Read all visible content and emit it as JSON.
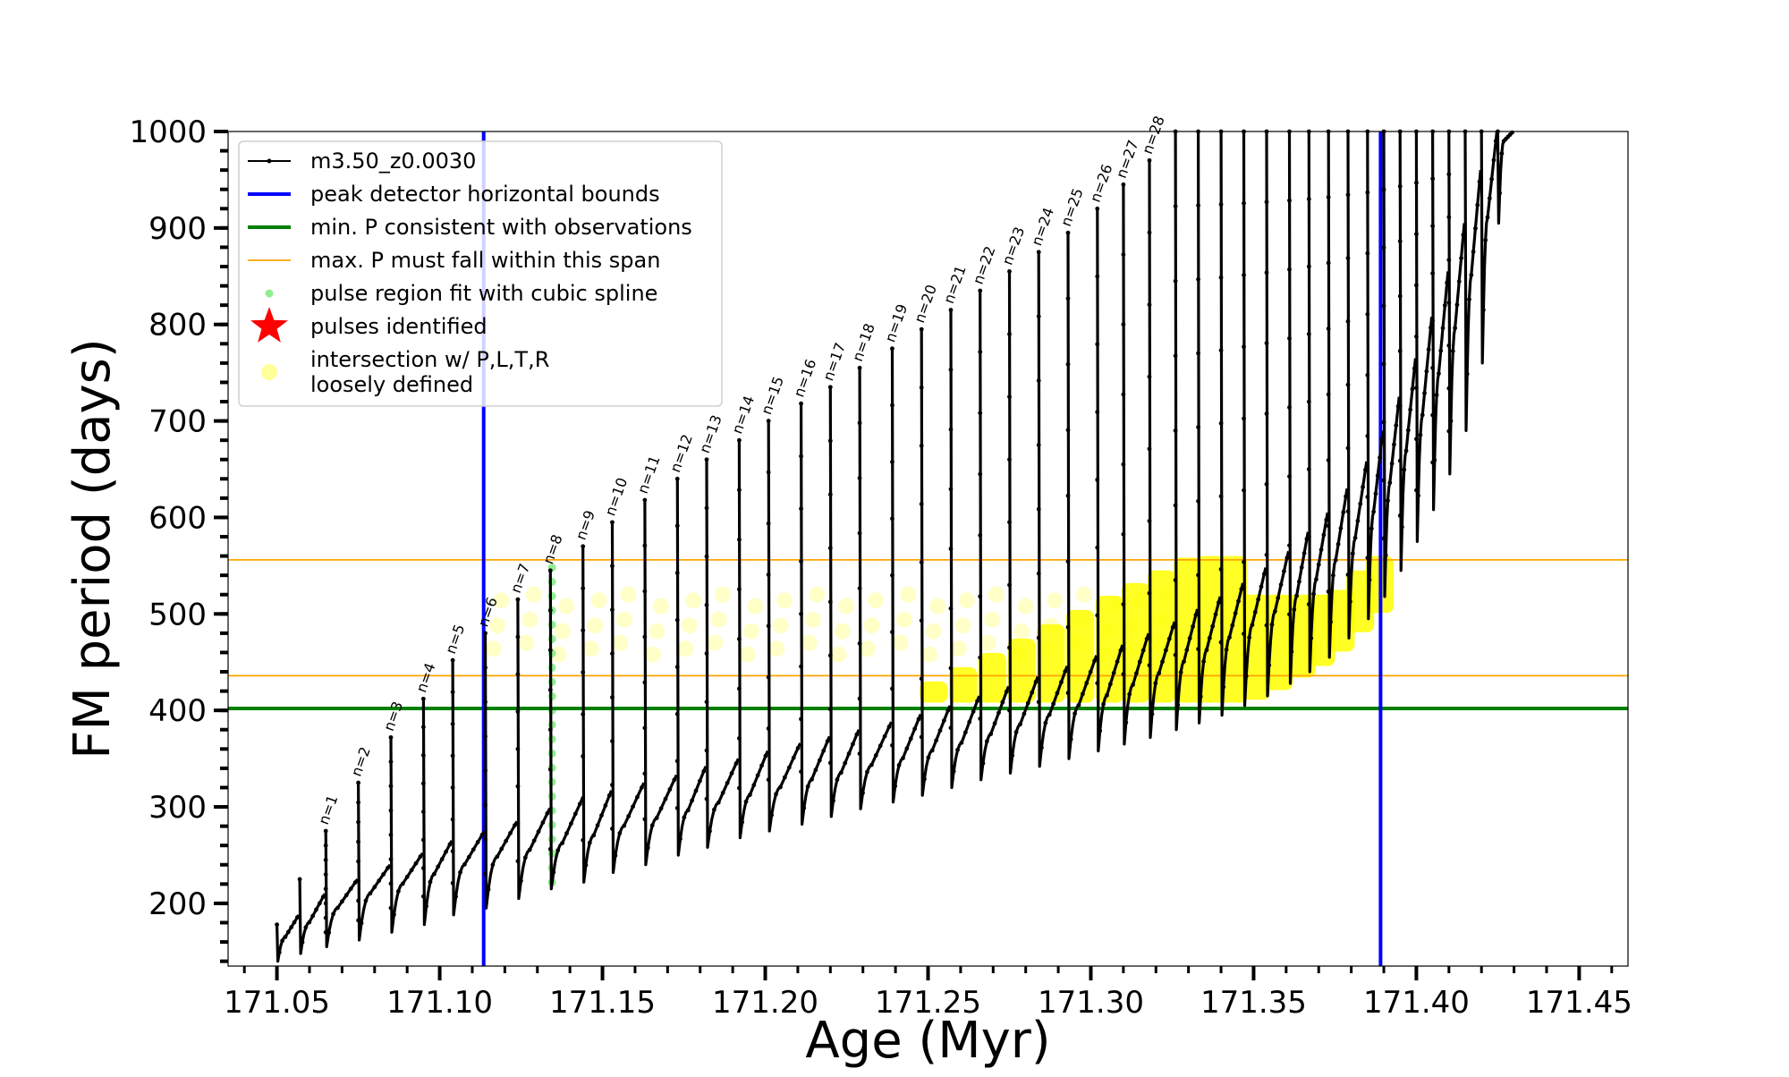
{
  "chart_data": {
    "type": "line",
    "xlabel": "Age (Myr)",
    "ylabel": "FM period (days)",
    "xlim": [
      171.035,
      171.465
    ],
    "ylim": [
      135,
      1000
    ],
    "xticks": [
      171.05,
      171.1,
      171.15,
      171.2,
      171.25,
      171.3,
      171.35,
      171.4,
      171.45
    ],
    "xtick_labels": [
      "171.05",
      "171.10",
      "171.15",
      "171.20",
      "171.25",
      "171.30",
      "171.35",
      "171.40",
      "171.45"
    ],
    "yticks": [
      200,
      300,
      400,
      500,
      600,
      700,
      800,
      900,
      1000
    ],
    "ytick_labels": [
      "200",
      "300",
      "400",
      "500",
      "600",
      "700",
      "800",
      "900",
      "1000"
    ],
    "grid": false,
    "legend_position": "top-left",
    "legend": [
      {
        "label": "m3.50_z0.0030",
        "kind": "line-marker",
        "color": "#000000"
      },
      {
        "label": "peak detector horizontal bounds",
        "kind": "line",
        "color": "#0000ff"
      },
      {
        "label": "min. P consistent with observations",
        "kind": "line",
        "color": "#008000"
      },
      {
        "label": "max. P must fall within this span",
        "kind": "thin-line",
        "color": "#ffa500"
      },
      {
        "label": "pulse region fit with cubic spline",
        "kind": "dot",
        "color": "#90ee90"
      },
      {
        "label": "pulses identified",
        "kind": "star",
        "color": "#ff0000"
      },
      {
        "label": "intersection w/ P,L,T,R\nloosely defined",
        "kind": "big-dot",
        "color": "#ffff99"
      }
    ],
    "series": [
      {
        "name": "m3.50_z0.0030",
        "color": "#000000",
        "pulses": [
          {
            "n": "",
            "x": 171.05,
            "bottom": 140,
            "plateau_start": 165,
            "plateau_end": 188,
            "peak": 178
          },
          {
            "n": "",
            "x": 171.057,
            "bottom": 148,
            "plateau_start": 180,
            "plateau_end": 210,
            "peak": 225
          },
          {
            "n": "n=1",
            "x": 171.065,
            "bottom": 155,
            "plateau_start": 195,
            "plateau_end": 225,
            "peak": 275
          },
          {
            "n": "n=2",
            "x": 171.075,
            "bottom": 162,
            "plateau_start": 210,
            "plateau_end": 240,
            "peak": 325
          },
          {
            "n": "n=3",
            "x": 171.085,
            "bottom": 170,
            "plateau_start": 220,
            "plateau_end": 252,
            "peak": 372
          },
          {
            "n": "n=4",
            "x": 171.095,
            "bottom": 178,
            "plateau_start": 230,
            "plateau_end": 265,
            "peak": 412
          },
          {
            "n": "n=5",
            "x": 171.104,
            "bottom": 188,
            "plateau_start": 240,
            "plateau_end": 275,
            "peak": 452
          },
          {
            "n": "n=6",
            "x": 171.114,
            "bottom": 195,
            "plateau_start": 248,
            "plateau_end": 285,
            "peak": 480
          },
          {
            "n": "n=7",
            "x": 171.124,
            "bottom": 205,
            "plateau_start": 255,
            "plateau_end": 298,
            "peak": 515
          },
          {
            "n": "n=8",
            "x": 171.134,
            "bottom": 215,
            "plateau_start": 262,
            "plateau_end": 308,
            "peak": 545
          },
          {
            "n": "n=9",
            "x": 171.144,
            "bottom": 222,
            "plateau_start": 270,
            "plateau_end": 317,
            "peak": 570
          },
          {
            "n": "n=10",
            "x": 171.153,
            "bottom": 232,
            "plateau_start": 280,
            "plateau_end": 325,
            "peak": 595
          },
          {
            "n": "n=11",
            "x": 171.163,
            "bottom": 240,
            "plateau_start": 288,
            "plateau_end": 333,
            "peak": 618
          },
          {
            "n": "n=12",
            "x": 171.173,
            "bottom": 250,
            "plateau_start": 296,
            "plateau_end": 342,
            "peak": 640
          },
          {
            "n": "n=13",
            "x": 171.182,
            "bottom": 258,
            "plateau_start": 304,
            "plateau_end": 350,
            "peak": 660
          },
          {
            "n": "n=14",
            "x": 171.192,
            "bottom": 268,
            "plateau_start": 312,
            "plateau_end": 358,
            "peak": 680
          },
          {
            "n": "n=15",
            "x": 171.201,
            "bottom": 275,
            "plateau_start": 320,
            "plateau_end": 366,
            "peak": 700
          },
          {
            "n": "n=16",
            "x": 171.211,
            "bottom": 282,
            "plateau_start": 328,
            "plateau_end": 373,
            "peak": 718
          },
          {
            "n": "n=17",
            "x": 171.22,
            "bottom": 290,
            "plateau_start": 335,
            "plateau_end": 380,
            "peak": 735
          },
          {
            "n": "n=18",
            "x": 171.229,
            "bottom": 298,
            "plateau_start": 343,
            "plateau_end": 388,
            "peak": 755
          },
          {
            "n": "n=19",
            "x": 171.239,
            "bottom": 305,
            "plateau_start": 350,
            "plateau_end": 396,
            "peak": 775
          },
          {
            "n": "n=20",
            "x": 171.248,
            "bottom": 312,
            "plateau_start": 358,
            "plateau_end": 405,
            "peak": 795
          },
          {
            "n": "n=21",
            "x": 171.257,
            "bottom": 320,
            "plateau_start": 366,
            "plateau_end": 415,
            "peak": 815
          },
          {
            "n": "n=22",
            "x": 171.266,
            "bottom": 328,
            "plateau_start": 375,
            "plateau_end": 425,
            "peak": 835
          },
          {
            "n": "n=23",
            "x": 171.275,
            "bottom": 335,
            "plateau_start": 385,
            "plateau_end": 435,
            "peak": 855
          },
          {
            "n": "n=24",
            "x": 171.284,
            "bottom": 342,
            "plateau_start": 395,
            "plateau_end": 446,
            "peak": 875
          },
          {
            "n": "n=25",
            "x": 171.293,
            "bottom": 350,
            "plateau_start": 405,
            "plateau_end": 457,
            "peak": 895
          },
          {
            "n": "n=26",
            "x": 171.302,
            "bottom": 358,
            "plateau_start": 415,
            "plateau_end": 468,
            "peak": 920
          },
          {
            "n": "n=27",
            "x": 171.31,
            "bottom": 365,
            "plateau_start": 426,
            "plateau_end": 480,
            "peak": 945
          },
          {
            "n": "n=28",
            "x": 171.318,
            "bottom": 372,
            "plateau_start": 438,
            "plateau_end": 492,
            "peak": 970
          },
          {
            "n": "",
            "x": 171.326,
            "bottom": 380,
            "plateau_start": 450,
            "plateau_end": 505,
            "peak": 1000
          },
          {
            "n": "",
            "x": 171.333,
            "bottom": 387,
            "plateau_start": 462,
            "plateau_end": 518,
            "peak": 1000
          },
          {
            "n": "",
            "x": 171.34,
            "bottom": 395,
            "plateau_start": 475,
            "plateau_end": 532,
            "peak": 1000
          },
          {
            "n": "",
            "x": 171.347,
            "bottom": 405,
            "plateau_start": 488,
            "plateau_end": 548,
            "peak": 1000
          },
          {
            "n": "",
            "x": 171.354,
            "bottom": 415,
            "plateau_start": 502,
            "plateau_end": 565,
            "peak": 1000
          },
          {
            "n": "",
            "x": 171.361,
            "bottom": 428,
            "plateau_start": 518,
            "plateau_end": 585,
            "peak": 1000
          },
          {
            "n": "",
            "x": 171.367,
            "bottom": 440,
            "plateau_start": 535,
            "plateau_end": 605,
            "peak": 1000
          },
          {
            "n": "",
            "x": 171.373,
            "bottom": 455,
            "plateau_start": 555,
            "plateau_end": 630,
            "peak": 1000
          },
          {
            "n": "",
            "x": 171.379,
            "bottom": 475,
            "plateau_start": 578,
            "plateau_end": 658,
            "peak": 1000
          },
          {
            "n": "",
            "x": 171.385,
            "bottom": 495,
            "plateau_start": 605,
            "plateau_end": 690,
            "peak": 1000
          },
          {
            "n": "",
            "x": 171.39,
            "bottom": 518,
            "plateau_start": 635,
            "plateau_end": 725,
            "peak": 1000
          },
          {
            "n": "",
            "x": 171.395,
            "bottom": 545,
            "plateau_start": 668,
            "plateau_end": 765,
            "peak": 1000
          },
          {
            "n": "",
            "x": 171.4,
            "bottom": 575,
            "plateau_start": 705,
            "plateau_end": 808,
            "peak": 1000
          },
          {
            "n": "",
            "x": 171.405,
            "bottom": 608,
            "plateau_start": 748,
            "plateau_end": 855,
            "peak": 1000
          },
          {
            "n": "",
            "x": 171.41,
            "bottom": 645,
            "plateau_start": 795,
            "plateau_end": 905,
            "peak": 1000
          },
          {
            "n": "",
            "x": 171.415,
            "bottom": 690,
            "plateau_start": 850,
            "plateau_end": 960,
            "peak": 1000
          },
          {
            "n": "",
            "x": 171.42,
            "bottom": 760,
            "plateau_start": 910,
            "plateau_end": 1000,
            "peak": 1000
          },
          {
            "n": "",
            "x": 171.425,
            "bottom": 905,
            "plateau_start": 990,
            "plateau_end": 1000,
            "peak": 1000
          }
        ]
      }
    ],
    "reference_lines": {
      "peak_detector_bounds_x": [
        171.1135,
        171.389
      ],
      "min_period_y": 402,
      "max_period_span_y": [
        436,
        556
      ]
    },
    "spline_region": {
      "x": 171.1345,
      "y_from": 222,
      "y_to": 548
    },
    "intersection_region": {
      "loose_y": [
        440,
        542
      ],
      "loose_x": [
        171.1135,
        171.32
      ],
      "dense_x": [
        171.248,
        171.389
      ],
      "dense_y_top": [
        430,
        560
      ],
      "dense_y_bottom": 408
    }
  }
}
